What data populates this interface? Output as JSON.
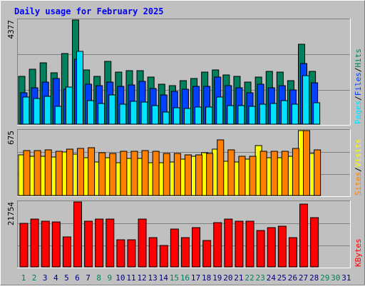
{
  "colors": {
    "background": "#c0c0c0",
    "hits": "#00805c",
    "files": "#0040ff",
    "pages": "#00e0ff",
    "visits": "#ffff00",
    "sites": "#ff8000",
    "kbytes": "#ff0000",
    "title": "#0000ff",
    "weekend_day": "#00805c",
    "normal_day": "#000080",
    "future_day": "#00805c"
  },
  "chart_data": [
    {
      "type": "bar",
      "title": "Daily usage for February 2025",
      "panel": "hits-files-pages",
      "ymax_label": "4377",
      "ylim": [
        0,
        4377
      ],
      "legend_right": [
        "Pages",
        "Files",
        "Hits"
      ],
      "legend_separator": "/",
      "categories": [
        "1",
        "2",
        "3",
        "4",
        "5",
        "6",
        "7",
        "8",
        "9",
        "10",
        "11",
        "12",
        "13",
        "14",
        "15",
        "16",
        "17",
        "18",
        "19",
        "20",
        "21",
        "22",
        "23",
        "24",
        "25",
        "26",
        "27",
        "28"
      ],
      "series": [
        {
          "name": "Hits",
          "values": [
            2002,
            2309,
            2581,
            2173,
            2968,
            4377,
            2290,
            2010,
            2650,
            2181,
            2244,
            2241,
            1973,
            1665,
            1616,
            1835,
            1910,
            2181,
            2290,
            2065,
            2015,
            1758,
            1990,
            2215,
            2200,
            1819,
            3347,
            2231
          ]
        },
        {
          "name": "Files",
          "values": [
            1316,
            1535,
            1768,
            1923,
            1468,
            2742,
            1678,
            1622,
            1756,
            1600,
            1663,
            1811,
            1505,
            1230,
            1381,
            1455,
            1580,
            1593,
            1983,
            1617,
            1542,
            1326,
            1692,
            1518,
            1605,
            1430,
            2563,
            1752
          ]
        },
        {
          "name": "Pages",
          "values": [
            1138,
            1090,
            1180,
            755,
            1573,
            3063,
            980,
            865,
            1233,
            825,
            970,
            935,
            770,
            520,
            675,
            655,
            705,
            729,
            1132,
            780,
            790,
            735,
            830,
            880,
            985,
            850,
            2038,
            885
          ]
        }
      ]
    },
    {
      "type": "bar",
      "panel": "visits-sites",
      "ymax_label": "675",
      "ylim": [
        0,
        675
      ],
      "legend_right": [
        "Sites",
        "Visits"
      ],
      "legend_separator": "/",
      "categories": [
        "1",
        "2",
        "3",
        "4",
        "5",
        "6",
        "7",
        "8",
        "9",
        "10",
        "11",
        "12",
        "13",
        "14",
        "15",
        "16",
        "17",
        "18",
        "19",
        "20",
        "21",
        "22",
        "23",
        "24",
        "25",
        "26",
        "27",
        "28"
      ],
      "series": [
        {
          "name": "Visits",
          "values": [
            420,
            405,
            410,
            400,
            450,
            430,
            390,
            350,
            395,
            340,
            385,
            385,
            340,
            340,
            345,
            380,
            410,
            445,
            480,
            355,
            350,
            380,
            520,
            390,
            390,
            410,
            675,
            440
          ]
        },
        {
          "name": "Sites",
          "values": [
            465,
            470,
            475,
            460,
            485,
            490,
            500,
            445,
            440,
            460,
            460,
            465,
            460,
            440,
            440,
            425,
            425,
            435,
            580,
            475,
            405,
            410,
            460,
            460,
            460,
            490,
            675,
            475
          ]
        }
      ]
    },
    {
      "type": "bar",
      "panel": "kbytes",
      "ymax_label": "21754",
      "ylim": [
        0,
        21754
      ],
      "legend_right": [
        "KBytes"
      ],
      "categories": [
        "1",
        "2",
        "3",
        "4",
        "5",
        "6",
        "7",
        "8",
        "9",
        "10",
        "11",
        "12",
        "13",
        "14",
        "15",
        "16",
        "17",
        "18",
        "19",
        "20",
        "21",
        "22",
        "23",
        "24",
        "25",
        "26",
        "27",
        "28"
      ],
      "series": [
        {
          "name": "KBytes",
          "values": [
            14700,
            16020,
            15360,
            15130,
            10020,
            21754,
            15360,
            15900,
            15900,
            9200,
            9200,
            15900,
            9880,
            7280,
            12700,
            9880,
            13210,
            8960,
            14760,
            15900,
            15360,
            15360,
            12180,
            13210,
            13740,
            9880,
            21000,
            16450
          ]
        }
      ]
    }
  ],
  "days": [
    {
      "label": "1",
      "kind": "weekend"
    },
    {
      "label": "2",
      "kind": "weekend"
    },
    {
      "label": "3",
      "kind": "normal"
    },
    {
      "label": "4",
      "kind": "normal"
    },
    {
      "label": "5",
      "kind": "normal"
    },
    {
      "label": "6",
      "kind": "normal"
    },
    {
      "label": "7",
      "kind": "normal"
    },
    {
      "label": "8",
      "kind": "weekend"
    },
    {
      "label": "9",
      "kind": "weekend"
    },
    {
      "label": "10",
      "kind": "normal"
    },
    {
      "label": "11",
      "kind": "normal"
    },
    {
      "label": "12",
      "kind": "normal"
    },
    {
      "label": "13",
      "kind": "normal"
    },
    {
      "label": "14",
      "kind": "normal"
    },
    {
      "label": "15",
      "kind": "weekend"
    },
    {
      "label": "16",
      "kind": "weekend"
    },
    {
      "label": "17",
      "kind": "normal"
    },
    {
      "label": "18",
      "kind": "normal"
    },
    {
      "label": "19",
      "kind": "normal"
    },
    {
      "label": "20",
      "kind": "normal"
    },
    {
      "label": "21",
      "kind": "normal"
    },
    {
      "label": "22",
      "kind": "weekend"
    },
    {
      "label": "23",
      "kind": "weekend"
    },
    {
      "label": "24",
      "kind": "normal"
    },
    {
      "label": "25",
      "kind": "normal"
    },
    {
      "label": "26",
      "kind": "normal"
    },
    {
      "label": "27",
      "kind": "normal"
    },
    {
      "label": "28",
      "kind": "normal"
    },
    {
      "label": "29",
      "kind": "future"
    },
    {
      "label": "30",
      "kind": "future"
    },
    {
      "label": "31",
      "kind": "normal"
    }
  ]
}
